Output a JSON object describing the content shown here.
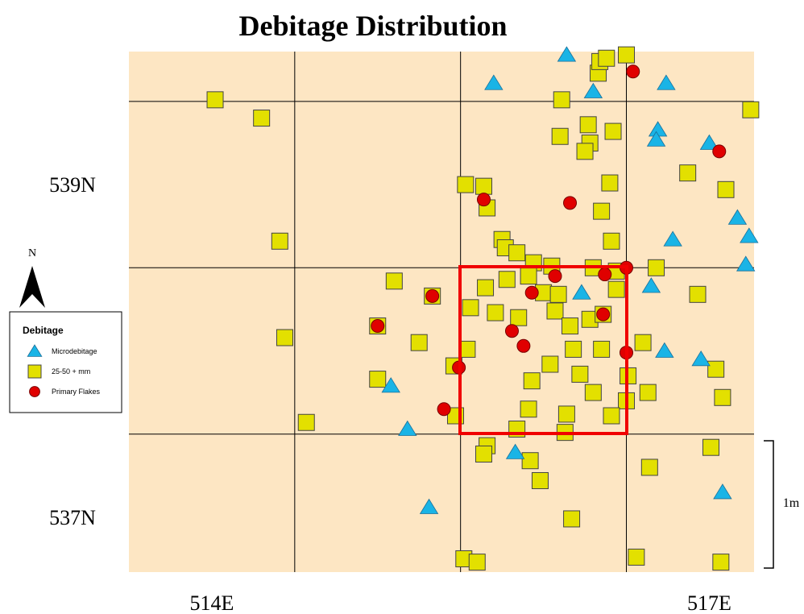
{
  "chart_data": {
    "type": "scatter",
    "title": "Debitage Distribution",
    "xlim": [
      514,
      517.77
    ],
    "ylim": [
      537.17,
      540.3
    ],
    "grid": true,
    "grid_x": [
      515,
      516,
      517
    ],
    "grid_y": [
      538,
      539,
      540
    ],
    "xticks": [
      {
        "value": 514.5,
        "label": "514E"
      },
      {
        "value": 517.5,
        "label": "517E"
      }
    ],
    "yticks": [
      {
        "value": 539.5,
        "label": "539N"
      },
      {
        "value": 537.5,
        "label": "537N"
      }
    ],
    "legend_title": "Debitage",
    "legend": "left",
    "north": "N",
    "scale_label": "1m",
    "series": [
      {
        "name": "Microdebitage",
        "marker": "triangle",
        "color": "#1ab4e6",
        "x": [
          516.64,
          516.2,
          517.24,
          516.8,
          517.19,
          517.18,
          517.5,
          517.67,
          517.28,
          517.74,
          517.72,
          517.15,
          516.73,
          517.23,
          517.45,
          515.58,
          515.68,
          516.33,
          515.81,
          517.58
        ],
        "y": [
          540.28,
          540.11,
          540.11,
          540.06,
          539.83,
          539.77,
          539.75,
          539.3,
          539.17,
          539.19,
          539.02,
          538.89,
          538.85,
          538.5,
          538.45,
          538.29,
          538.03,
          537.89,
          537.56,
          537.65
        ]
      },
      {
        "name": "25-50 + mm",
        "marker": "square",
        "color": "#e3e000",
        "x": [
          514.52,
          514.8,
          514.91,
          514.94,
          515.07,
          515.6,
          515.83,
          515.5,
          515.75,
          515.5,
          516.03,
          516.14,
          516.16,
          516.25,
          516.27,
          516.34,
          516.44,
          516.55,
          516.61,
          516.77,
          516.92,
          516.78,
          516.75,
          516.6,
          516.83,
          516.84,
          516.88,
          517.0,
          516.9,
          516.85,
          516.91,
          517.37,
          517.6,
          517.75,
          517.18,
          517.43,
          516.8,
          516.94,
          516.15,
          516.06,
          516.28,
          516.41,
          516.5,
          516.59,
          516.21,
          516.35,
          516.57,
          516.66,
          516.78,
          516.86,
          516.94,
          516.04,
          515.96,
          516.43,
          516.54,
          516.68,
          516.85,
          516.72,
          516.8,
          517.01,
          517.1,
          517.54,
          517.58,
          517.13,
          517.0,
          516.41,
          515.97,
          516.34,
          516.63,
          516.64,
          516.91,
          516.16,
          516.14,
          516.42,
          516.48,
          517.14,
          517.51,
          516.67,
          516.02,
          516.1,
          517.06,
          517.57
        ],
        "y": [
          540.01,
          539.9,
          539.16,
          538.58,
          538.07,
          538.92,
          538.83,
          538.65,
          538.55,
          538.33,
          539.5,
          539.49,
          539.36,
          539.17,
          539.12,
          539.09,
          539.03,
          539.01,
          540.01,
          539.86,
          539.82,
          539.75,
          539.7,
          539.79,
          540.17,
          540.24,
          540.26,
          540.28,
          539.51,
          539.34,
          539.16,
          539.57,
          539.47,
          539.95,
          539.0,
          538.84,
          539.0,
          538.98,
          538.88,
          538.76,
          538.93,
          538.95,
          538.85,
          538.84,
          538.73,
          538.7,
          538.74,
          538.65,
          538.69,
          538.72,
          538.87,
          538.51,
          538.41,
          538.32,
          538.42,
          538.51,
          538.51,
          538.36,
          538.25,
          538.35,
          538.55,
          538.39,
          538.22,
          538.25,
          538.2,
          538.15,
          538.11,
          538.03,
          538.01,
          538.12,
          538.11,
          537.93,
          537.88,
          537.84,
          537.72,
          537.8,
          537.92,
          537.49,
          537.25,
          537.23,
          537.26,
          537.23
        ]
      },
      {
        "name": "Primary Flakes",
        "marker": "circle",
        "color": "#e00000",
        "x": [
          517.04,
          517.56,
          516.14,
          516.66,
          516.87,
          517.0,
          516.57,
          516.43,
          515.83,
          515.5,
          516.86,
          516.31,
          516.38,
          517.0,
          515.99,
          515.9
        ],
        "y": [
          540.18,
          539.7,
          539.41,
          539.39,
          538.96,
          539.0,
          538.95,
          538.85,
          538.83,
          538.65,
          538.72,
          538.62,
          538.53,
          538.49,
          538.4,
          538.15
        ]
      }
    ]
  }
}
